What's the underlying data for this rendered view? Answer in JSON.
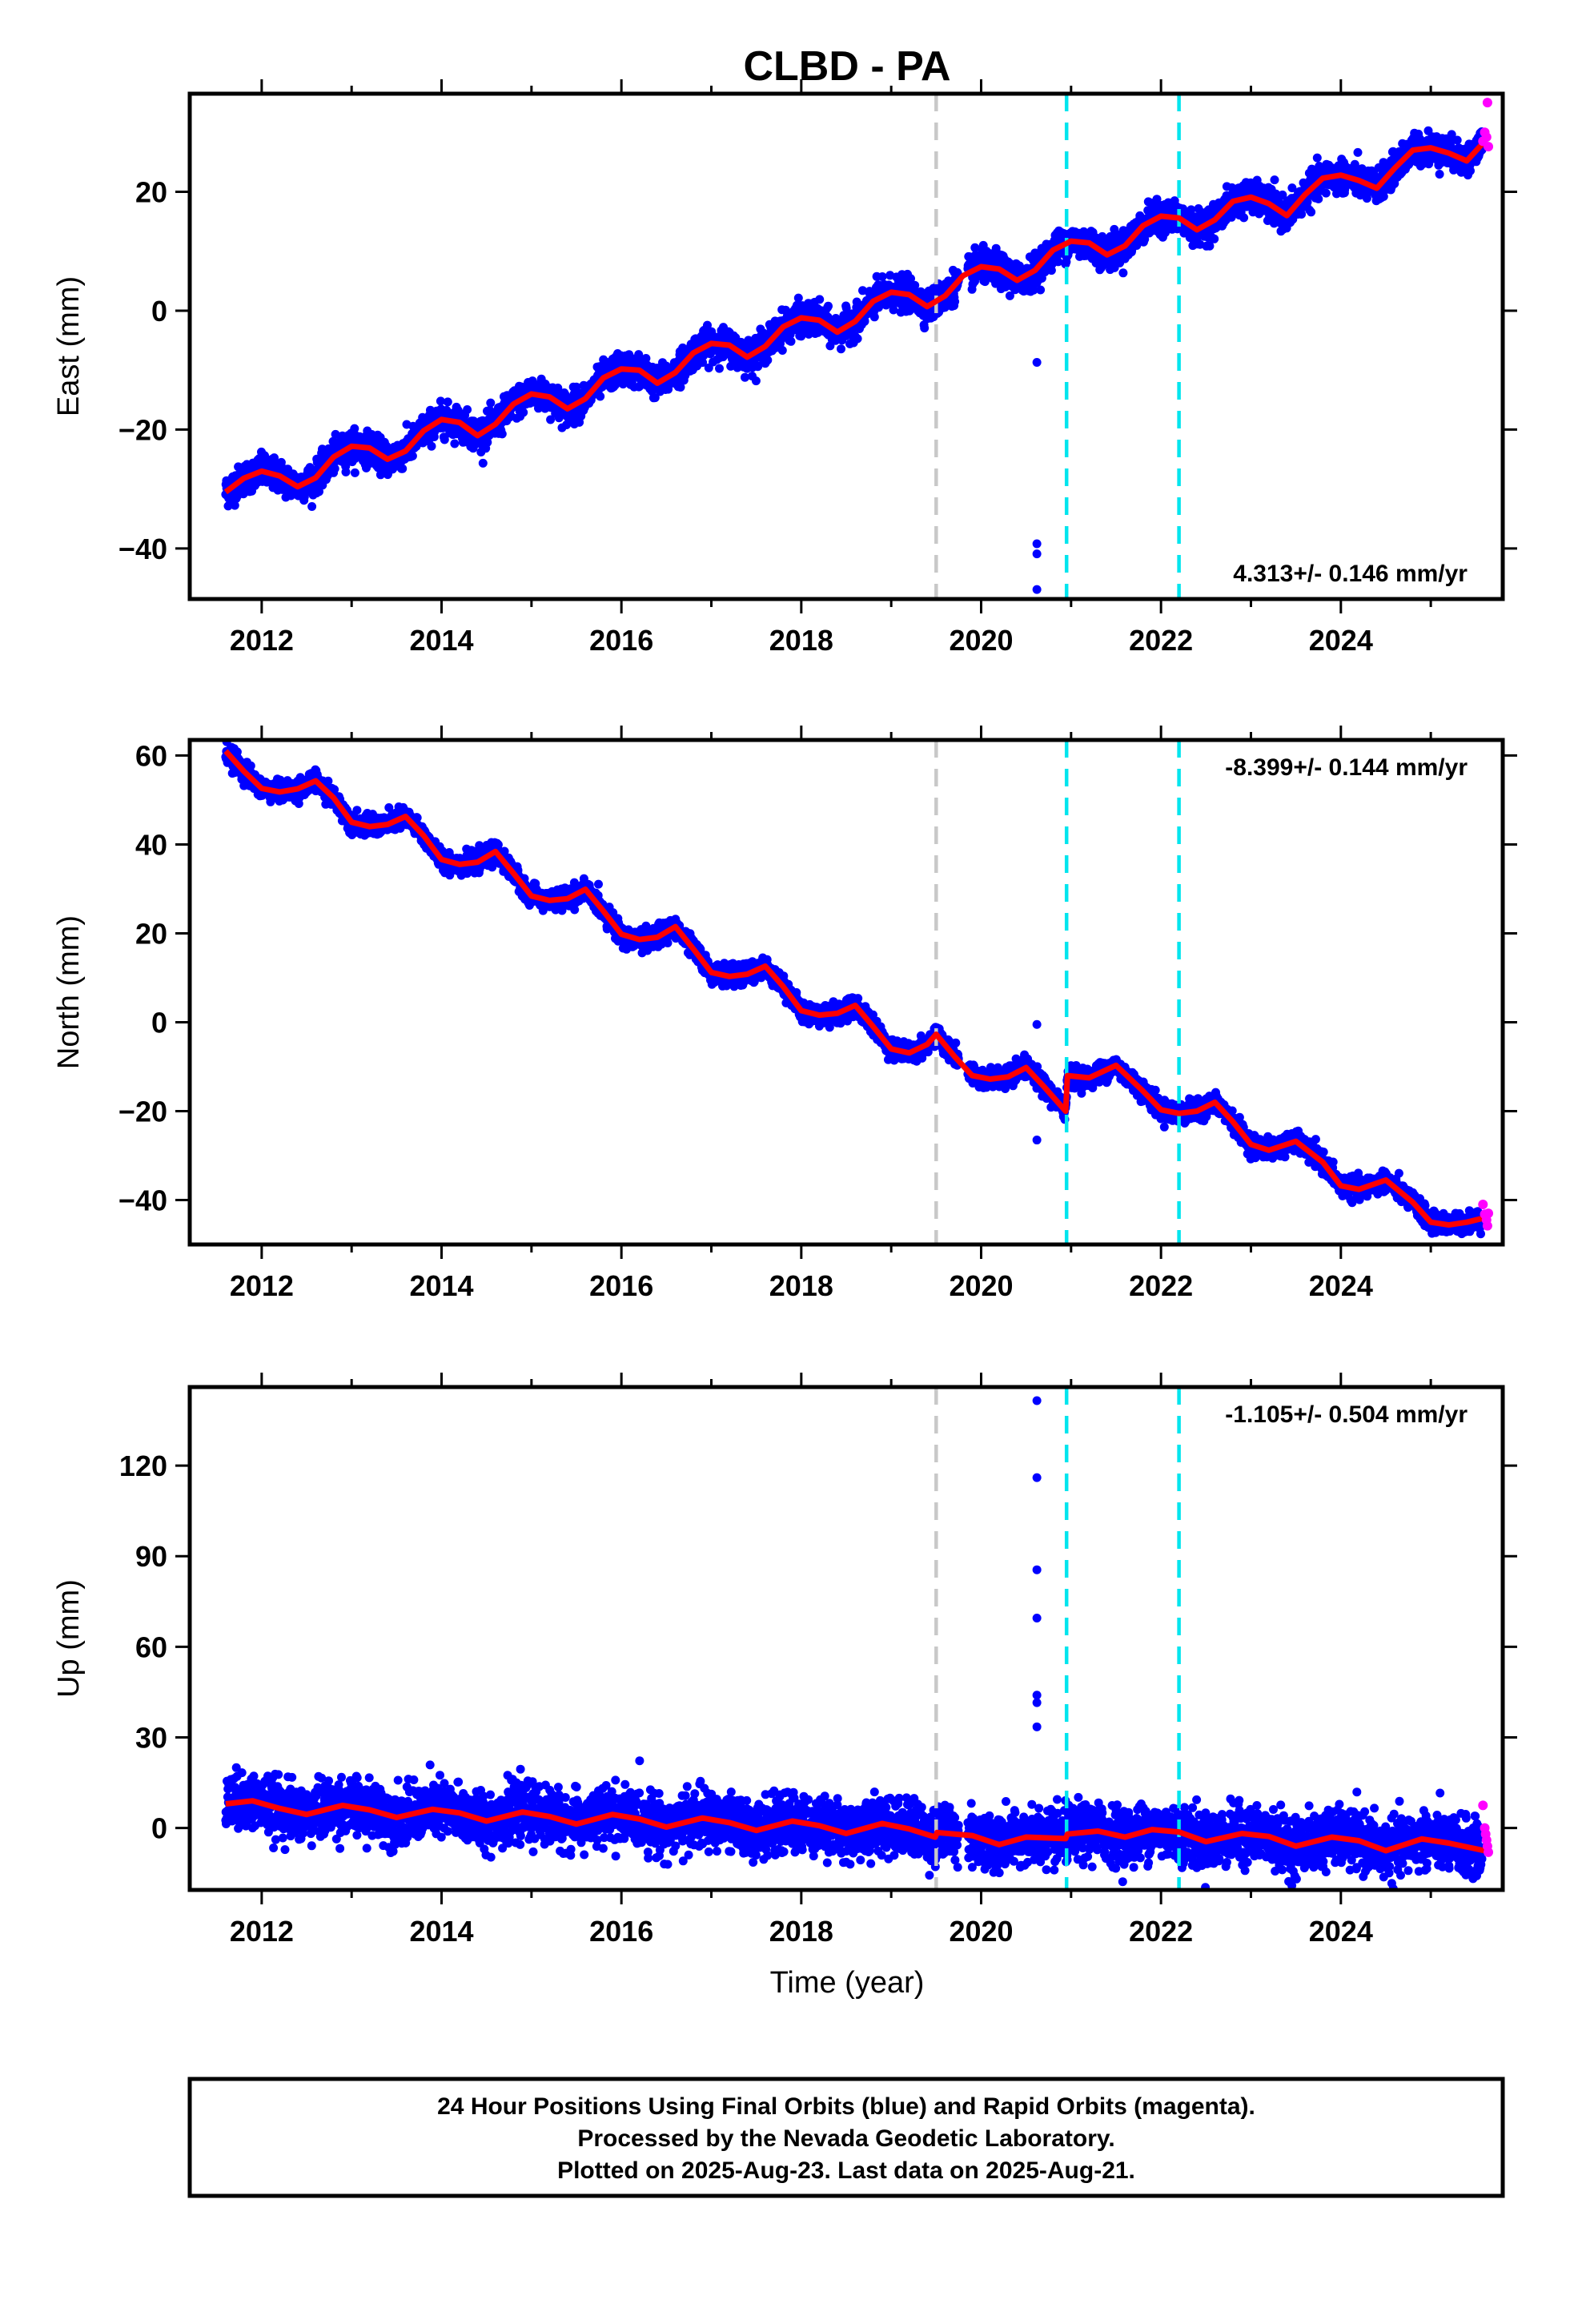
{
  "title": "CLBD - PA",
  "xlabel": "Time (year)",
  "footer": {
    "line1": "24 Hour Positions Using Final Orbits (blue) and Rapid Orbits (magenta).",
    "line2": "Processed by the Nevada Geodetic Laboratory.",
    "line3": "Plotted on 2025-Aug-23. Last data on 2025-Aug-21."
  },
  "colors": {
    "final": "#0000ff",
    "rapid": "#ff00ff",
    "model": "#ff0000",
    "event_gray": "#c8c8c8",
    "event_cyan": "#00e5ee"
  },
  "chart_data": [
    {
      "type": "scatter",
      "component": "East",
      "ylabel": "East (mm)",
      "rate_text": "4.313+/- 0.146 mm/yr",
      "xlim": [
        2011.2,
        2025.8
      ],
      "ylim": [
        -48.5,
        36.5
      ],
      "yticks": [
        -40,
        -20,
        0,
        20
      ],
      "xticks": [
        2012,
        2014,
        2016,
        2018,
        2020,
        2022,
        2024
      ],
      "grid": false,
      "event_lines": [
        {
          "x": 2019.5,
          "kind": "gray"
        },
        {
          "x": 2020.95,
          "kind": "cyan"
        },
        {
          "x": 2022.2,
          "kind": "cyan"
        }
      ],
      "model_line": {
        "x": [
          2011.6,
          2011.8,
          2012.0,
          2012.2,
          2012.4,
          2012.6,
          2012.8,
          2013.0,
          2013.2,
          2013.4,
          2013.6,
          2013.8,
          2014.0,
          2014.2,
          2014.4,
          2014.6,
          2014.8,
          2015.0,
          2015.2,
          2015.4,
          2015.6,
          2015.8,
          2016.0,
          2016.2,
          2016.4,
          2016.6,
          2016.8,
          2017.0,
          2017.2,
          2017.4,
          2017.6,
          2017.8,
          2018.0,
          2018.2,
          2018.4,
          2018.6,
          2018.8,
          2019.0,
          2019.2,
          2019.4,
          2019.6,
          2019.8,
          2020.0,
          2020.2,
          2020.4,
          2020.6,
          2020.8,
          2021.0,
          2021.2,
          2021.4,
          2021.6,
          2021.8,
          2022.0,
          2022.2,
          2022.4,
          2022.6,
          2022.8,
          2023.0,
          2023.2,
          2023.4,
          2023.6,
          2023.8,
          2024.0,
          2024.2,
          2024.4,
          2024.6,
          2024.8,
          2025.0,
          2025.2,
          2025.4,
          2025.6
        ],
        "y": [
          -30.5,
          -28.2,
          -27.0,
          -27.8,
          -29.6,
          -28.1,
          -24.6,
          -22.8,
          -23.1,
          -25.0,
          -23.6,
          -20.2,
          -18.3,
          -18.8,
          -21.0,
          -19.1,
          -15.7,
          -14.0,
          -14.5,
          -16.5,
          -14.8,
          -11.3,
          -9.8,
          -10.0,
          -12.2,
          -10.4,
          -7.1,
          -5.5,
          -5.8,
          -7.8,
          -6.0,
          -2.7,
          -1.2,
          -1.6,
          -3.6,
          -1.8,
          1.6,
          3.1,
          2.7,
          0.7,
          2.5,
          5.9,
          7.4,
          7.0,
          5.1,
          6.8,
          10.2,
          11.7,
          11.4,
          9.4,
          10.9,
          14.3,
          15.9,
          15.6,
          13.6,
          15.3,
          18.4,
          19.1,
          18.0,
          16.0,
          19.5,
          22.3,
          22.8,
          21.9,
          20.6,
          24.0,
          27.0,
          27.4,
          26.5,
          25.2,
          28.5
        ]
      },
      "outliers": [
        {
          "x": 2020.62,
          "y": -8.7
        },
        {
          "x": 2020.62,
          "y": -39.2
        },
        {
          "x": 2020.62,
          "y": -40.9
        },
        {
          "x": 2020.62,
          "y": -46.9
        }
      ],
      "rapid_points": {
        "x": [
          2025.58,
          2025.6,
          2025.62,
          2025.63,
          2025.64
        ],
        "y": [
          28.5,
          30.0,
          29.2,
          35.0,
          27.6
        ]
      },
      "scatter_spread": 1.3
    },
    {
      "type": "scatter",
      "component": "North",
      "ylabel": "North (mm)",
      "rate_text": "-8.399+/- 0.144 mm/yr",
      "xlim": [
        2011.2,
        2025.8
      ],
      "ylim": [
        -50,
        63.5
      ],
      "yticks": [
        -40,
        -20,
        0,
        20,
        40,
        60
      ],
      "xticks": [
        2012,
        2014,
        2016,
        2018,
        2020,
        2022,
        2024
      ],
      "grid": false,
      "event_lines": [
        {
          "x": 2019.5,
          "kind": "gray"
        },
        {
          "x": 2020.95,
          "kind": "cyan"
        },
        {
          "x": 2022.2,
          "kind": "cyan"
        }
      ],
      "model_line": {
        "x": [
          2011.6,
          2011.8,
          2012.0,
          2012.2,
          2012.4,
          2012.6,
          2012.8,
          2013.0,
          2013.2,
          2013.4,
          2013.6,
          2013.8,
          2014.0,
          2014.2,
          2014.4,
          2014.6,
          2014.8,
          2015.0,
          2015.2,
          2015.4,
          2015.6,
          2015.8,
          2016.0,
          2016.2,
          2016.4,
          2016.6,
          2016.8,
          2017.0,
          2017.2,
          2017.4,
          2017.6,
          2017.8,
          2018.0,
          2018.2,
          2018.4,
          2018.6,
          2018.8,
          2019.0,
          2019.2,
          2019.4,
          2019.5,
          2019.7,
          2019.9,
          2020.1,
          2020.3,
          2020.5,
          2020.7,
          2020.94,
          2020.96,
          2021.2,
          2021.5,
          2021.8,
          2022.0,
          2022.2,
          2022.4,
          2022.6,
          2022.8,
          2023.0,
          2023.2,
          2023.5,
          2023.8,
          2024.0,
          2024.2,
          2024.5,
          2024.8,
          2025.0,
          2025.2,
          2025.4,
          2025.6
        ],
        "y": [
          61.0,
          56.5,
          52.6,
          51.8,
          52.5,
          54.3,
          50.5,
          45.0,
          44.0,
          44.5,
          46.3,
          42.0,
          36.6,
          35.5,
          36.0,
          38.4,
          33.5,
          28.4,
          27.4,
          27.8,
          29.9,
          25.0,
          19.8,
          18.6,
          19.1,
          21.5,
          16.5,
          11.2,
          10.3,
          10.8,
          12.6,
          8.0,
          2.6,
          1.6,
          2.0,
          3.8,
          -1.0,
          -6.0,
          -6.9,
          -5.0,
          -2.7,
          -7.6,
          -12.0,
          -12.8,
          -12.3,
          -10.2,
          -14.5,
          -20.0,
          -12.0,
          -12.5,
          -9.7,
          -15.5,
          -19.7,
          -20.5,
          -20.0,
          -18.0,
          -22.4,
          -27.5,
          -28.8,
          -26.8,
          -31.5,
          -36.8,
          -37.6,
          -35.5,
          -40.5,
          -45.0,
          -45.6,
          -45.0,
          -44.0
        ]
      },
      "outliers": [
        {
          "x": 2020.62,
          "y": -0.5
        },
        {
          "x": 2020.62,
          "y": -26.5
        }
      ],
      "rapid_points": {
        "x": [
          2025.58,
          2025.6,
          2025.62,
          2025.63,
          2025.64
        ],
        "y": [
          -41.0,
          -43.2,
          -44.5,
          -45.8,
          -43.0
        ]
      },
      "scatter_spread": 1.1
    },
    {
      "type": "scatter",
      "component": "Up",
      "ylabel": "Up (mm)",
      "rate_text": "-1.105+/- 0.504 mm/yr",
      "xlim": [
        2011.2,
        2025.8
      ],
      "ylim": [
        -20.5,
        146
      ],
      "yticks": [
        0,
        30,
        60,
        90,
        120
      ],
      "xticks": [
        2012,
        2014,
        2016,
        2018,
        2020,
        2022,
        2024
      ],
      "grid": false,
      "event_lines": [
        {
          "x": 2019.5,
          "kind": "gray"
        },
        {
          "x": 2020.95,
          "kind": "cyan"
        },
        {
          "x": 2022.2,
          "kind": "cyan"
        }
      ],
      "model_line": {
        "x": [
          2011.6,
          2011.9,
          2012.2,
          2012.5,
          2012.9,
          2013.2,
          2013.5,
          2013.9,
          2014.2,
          2014.5,
          2014.9,
          2015.2,
          2015.5,
          2015.9,
          2016.2,
          2016.5,
          2016.9,
          2017.2,
          2017.5,
          2017.9,
          2018.2,
          2018.5,
          2018.9,
          2019.2,
          2019.49,
          2019.51,
          2019.9,
          2020.2,
          2020.5,
          2020.94,
          2020.96,
          2021.3,
          2021.6,
          2021.9,
          2022.2,
          2022.5,
          2022.9,
          2023.2,
          2023.5,
          2023.9,
          2024.2,
          2024.5,
          2024.9,
          2025.2,
          2025.6
        ],
        "y": [
          8.0,
          9.0,
          6.5,
          4.5,
          7.5,
          6.0,
          3.5,
          6.2,
          5.0,
          2.3,
          5.3,
          3.8,
          1.3,
          4.5,
          3.0,
          0.3,
          3.3,
          1.8,
          -0.8,
          2.3,
          0.8,
          -1.8,
          1.5,
          -0.3,
          -3.0,
          -1.5,
          -2.5,
          -5.5,
          -3.0,
          -3.5,
          -2.0,
          -1.0,
          -3.0,
          -0.5,
          -1.3,
          -4.5,
          -1.8,
          -2.8,
          -6.0,
          -3.0,
          -4.2,
          -7.5,
          -3.6,
          -5.0,
          -7.5
        ]
      },
      "outliers": [
        {
          "x": 2020.62,
          "y": 141.5
        },
        {
          "x": 2020.62,
          "y": 116.0
        },
        {
          "x": 2020.62,
          "y": 85.5
        },
        {
          "x": 2020.62,
          "y": 69.5
        },
        {
          "x": 2020.62,
          "y": 44.0
        },
        {
          "x": 2020.62,
          "y": 41.5
        },
        {
          "x": 2020.62,
          "y": 33.5
        }
      ],
      "rapid_points": {
        "x": [
          2025.58,
          2025.6,
          2025.61,
          2025.62,
          2025.63,
          2025.64
        ],
        "y": [
          7.5,
          0.0,
          -2.0,
          -4.0,
          -6.0,
          -8.0
        ]
      },
      "scatter_spread": 4.5
    }
  ]
}
